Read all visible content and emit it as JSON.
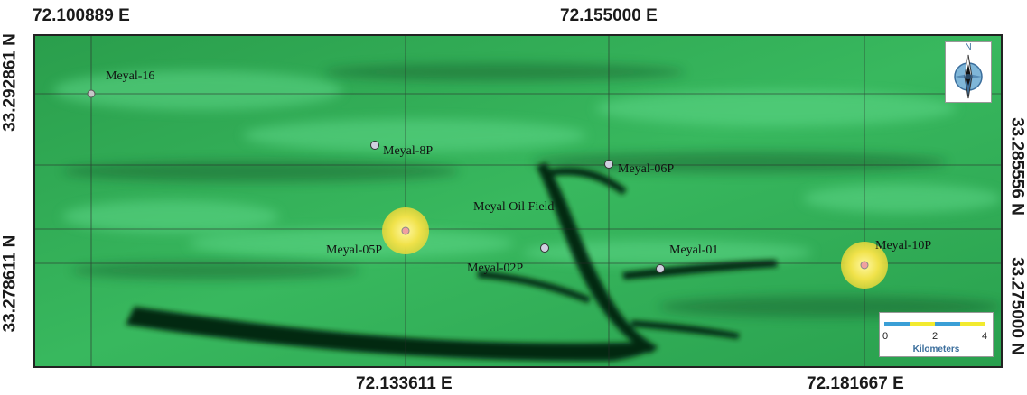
{
  "coordinates": {
    "top": [
      "72.100889 E",
      "72.155000 E"
    ],
    "bottom": [
      "72.133611 E",
      "72.181667 E"
    ],
    "left": [
      "33.292861 N",
      "33.278611 N"
    ],
    "right": [
      "33.285556 N",
      "33.275000 N"
    ]
  },
  "field_label": "Meyal Oil Field",
  "wells": [
    {
      "label": "Meyal-16"
    },
    {
      "label": "Meyal-8P"
    },
    {
      "label": "Meyal-06P"
    },
    {
      "label": "Meyal-05P",
      "highlighted": true
    },
    {
      "label": "Meyal-02P"
    },
    {
      "label": "Meyal-01"
    },
    {
      "label": "Meyal-10P",
      "highlighted": true
    }
  ],
  "north_arrow": {
    "letter": "N",
    "icon": "compass-north-arrow-icon"
  },
  "scale_bar": {
    "ticks": [
      "0",
      "2",
      "4"
    ],
    "unit": "Kilometers",
    "colors": [
      "#3a9fd6",
      "#f2ea2e"
    ]
  },
  "colors": {
    "terrain": "#2fae5a",
    "ridge": "#0b2a12",
    "highlight": "#f0e24a",
    "grid": "#2a2a2a"
  }
}
